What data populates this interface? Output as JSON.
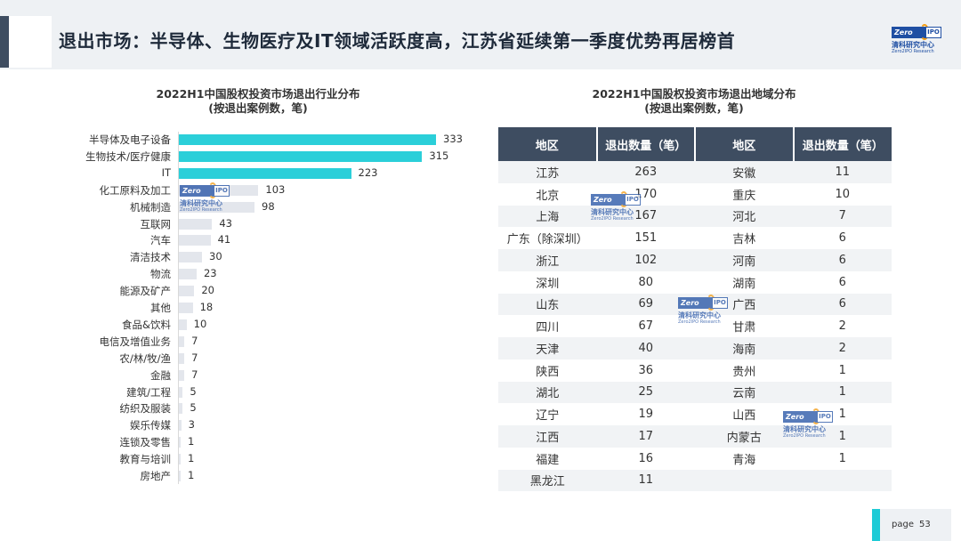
{
  "header": {
    "title": "退出市场：半导体、生物医疗及IT领域活跃度高，江苏省延续第一季度优势再居榜首"
  },
  "logo": {
    "zero": "Zero",
    "ipo": "IPO",
    "cn": "清科研究中心",
    "en": "Zero2IPO Research"
  },
  "colors": {
    "highlight_bar": "#2bcfd9",
    "normal_bar": "#e3e6ec",
    "table_header": "#3e4d61",
    "accent": "#1ecbd6"
  },
  "chart_data": [
    {
      "type": "bar",
      "orientation": "horizontal",
      "title": "2022H1中国股权投资市场退出行业分布",
      "subtitle": "(按退出案例数，笔)",
      "categories": [
        "半导体及电子设备",
        "生物技术/医疗健康",
        "IT",
        "化工原料及加工",
        "机械制造",
        "互联网",
        "汽车",
        "清洁技术",
        "物流",
        "能源及矿产",
        "其他",
        "食品&饮料",
        "电信及增值业务",
        "农/林/牧/渔",
        "金融",
        "建筑/工程",
        "纺织及服装",
        "娱乐传媒",
        "连锁及零售",
        "教育与培训",
        "房地产"
      ],
      "values": [
        333,
        315,
        223,
        103,
        98,
        43,
        41,
        30,
        23,
        20,
        18,
        10,
        7,
        7,
        7,
        5,
        5,
        3,
        1,
        1,
        1
      ],
      "highlighted": [
        true,
        true,
        true,
        false,
        false,
        false,
        false,
        false,
        false,
        false,
        false,
        false,
        false,
        false,
        false,
        false,
        false,
        false,
        false,
        false,
        false
      ],
      "xlim": [
        0,
        333
      ]
    },
    {
      "type": "table",
      "title": "2022H1中国股权投资市场退出地域分布",
      "subtitle": "(按退出案例数，笔)",
      "columns": [
        "地区",
        "退出数量（笔）",
        "地区",
        "退出数量（笔）"
      ],
      "rows": [
        [
          "江苏",
          "263",
          "安徽",
          "11"
        ],
        [
          "北京",
          "170",
          "重庆",
          "10"
        ],
        [
          "上海",
          "167",
          "河北",
          "7"
        ],
        [
          "广东（除深圳）",
          "151",
          "吉林",
          "6"
        ],
        [
          "浙江",
          "102",
          "河南",
          "6"
        ],
        [
          "深圳",
          "80",
          "湖南",
          "6"
        ],
        [
          "山东",
          "69",
          "广西",
          "6"
        ],
        [
          "四川",
          "67",
          "甘肃",
          "2"
        ],
        [
          "天津",
          "40",
          "海南",
          "2"
        ],
        [
          "陕西",
          "36",
          "贵州",
          "1"
        ],
        [
          "湖北",
          "25",
          "云南",
          "1"
        ],
        [
          "辽宁",
          "19",
          "山西",
          "1"
        ],
        [
          "江西",
          "17",
          "内蒙古",
          "1"
        ],
        [
          "福建",
          "16",
          "青海",
          "1"
        ],
        [
          "黑龙江",
          "11",
          "",
          ""
        ]
      ]
    }
  ],
  "footer": {
    "page_label": "page",
    "page_number": "53"
  }
}
